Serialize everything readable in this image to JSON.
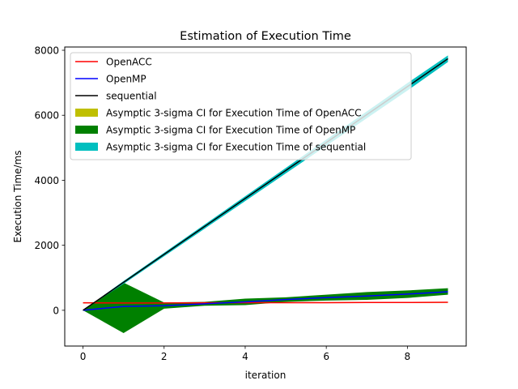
{
  "chart_data": {
    "type": "line",
    "title": "Estimation of Execution Time",
    "xlabel": "iteration",
    "ylabel": "Execution Time/ms",
    "xlim": [
      -0.45,
      9.45
    ],
    "ylim": [
      -1100,
      8100
    ],
    "xticks": [
      0,
      2,
      4,
      6,
      8
    ],
    "yticks": [
      0,
      2000,
      4000,
      6000,
      8000
    ],
    "grid": false,
    "legend_position": "upper-left",
    "x": [
      0,
      1,
      2,
      3,
      4,
      5,
      6,
      7,
      8,
      9
    ],
    "series": [
      {
        "name": "OpenACC",
        "color": "#ff0000",
        "values": [
          230,
          225,
          225,
          230,
          235,
          235,
          235,
          240,
          240,
          245
        ]
      },
      {
        "name": "OpenMP",
        "color": "#0000ff",
        "values": [
          0,
          120,
          140,
          200,
          260,
          330,
          390,
          440,
          500,
          570
        ]
      },
      {
        "name": "sequential",
        "color": "#000000",
        "values": [
          0,
          860,
          1720,
          2580,
          3440,
          4300,
          5160,
          6020,
          6880,
          7740
        ]
      }
    ],
    "bands": [
      {
        "name": "Asymptic 3-sigma CI for Execution Time of OpenACC",
        "color": "#bfbf00",
        "lower": [
          215,
          210,
          210,
          215,
          220,
          220,
          220,
          225,
          225,
          230
        ],
        "upper": [
          245,
          240,
          240,
          245,
          250,
          250,
          250,
          255,
          255,
          260
        ]
      },
      {
        "name": "Asymptic 3-sigma CI for Execution Time of OpenMP",
        "color": "#008000",
        "lower": [
          0,
          -700,
          50,
          140,
          160,
          260,
          300,
          320,
          380,
          480
        ],
        "upper": [
          0,
          850,
          240,
          260,
          360,
          400,
          480,
          560,
          610,
          680
        ]
      },
      {
        "name": "Asymptic 3-sigma CI for Execution Time of sequential",
        "color": "#00bfbf",
        "lower": [
          0,
          810,
          1660,
          2510,
          3360,
          4210,
          5060,
          5910,
          6760,
          7640
        ],
        "upper": [
          0,
          900,
          1770,
          2640,
          3510,
          4380,
          5250,
          6120,
          6990,
          7840
        ]
      }
    ]
  }
}
